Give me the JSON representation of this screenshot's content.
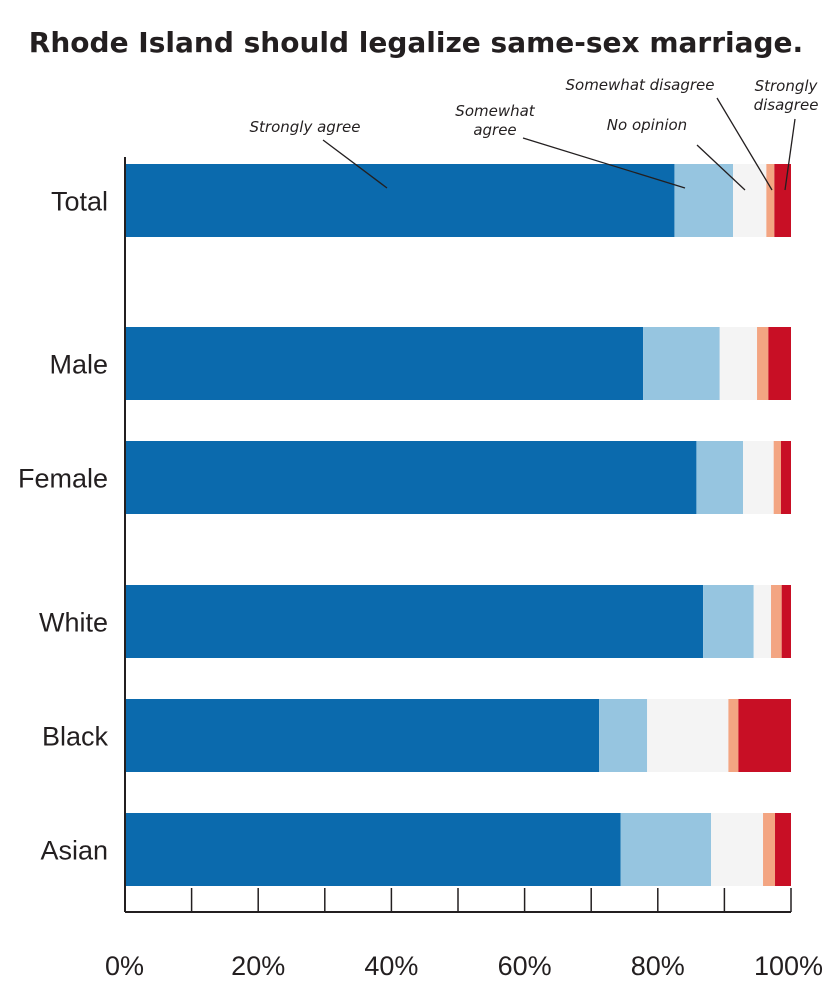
{
  "chart_data": {
    "type": "bar",
    "orientation": "horizontal",
    "stacked": true,
    "title": "Rhode Island should legalize same-sex marriage.",
    "categories": [
      "Total",
      "Male",
      "Female",
      "White",
      "Black",
      "Asian"
    ],
    "series": [
      {
        "name": "Strongly agree",
        "color": "#0b6aad",
        "values": [
          82.5,
          77.8,
          85.8,
          86.8,
          71.2,
          74.4
        ]
      },
      {
        "name": "Somewhat agree",
        "color": "#96c5e0",
        "values": [
          8.8,
          11.5,
          7.0,
          7.6,
          7.2,
          13.6
        ]
      },
      {
        "name": "No opinion",
        "color": "#f4f4f4",
        "values": [
          5.0,
          5.6,
          4.6,
          2.6,
          12.2,
          7.8
        ]
      },
      {
        "name": "Somewhat disagree",
        "color": "#f3a582",
        "values": [
          1.2,
          1.7,
          1.1,
          1.6,
          1.5,
          1.8
        ]
      },
      {
        "name": "Strongly disagree",
        "color": "#c80f25",
        "values": [
          2.5,
          3.4,
          1.5,
          1.4,
          7.9,
          2.4
        ]
      }
    ],
    "annotations": [
      {
        "series": "Strongly agree",
        "lines": [
          "Strongly agree"
        ]
      },
      {
        "series": "Somewhat agree",
        "lines": [
          "Somewhat",
          "agree"
        ]
      },
      {
        "series": "No opinion",
        "lines": [
          "No opinion"
        ]
      },
      {
        "series": "Somewhat disagree",
        "lines": [
          "Somewhat disagree"
        ]
      },
      {
        "series": "Strongly disagree",
        "lines": [
          "Strongly",
          "disagree"
        ]
      }
    ],
    "xlim": [
      0,
      100
    ],
    "xticks": [
      0,
      20,
      40,
      60,
      80,
      100
    ],
    "xtick_labels": [
      "0%",
      "20%",
      "40%",
      "60%",
      "80%",
      "100%"
    ],
    "grid": false
  }
}
